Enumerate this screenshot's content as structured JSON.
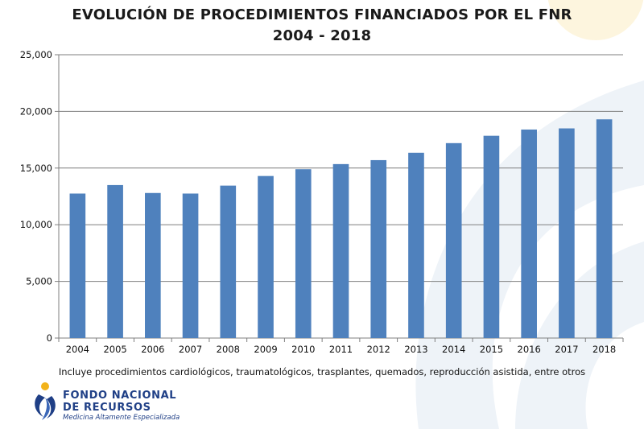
{
  "title_line1": "EVOLUCIÓN DE PROCEDIMIENTOS FINANCIADOS POR EL FNR",
  "title_line2": "2004 - 2018",
  "note": "Incluye procedimientos cardiológicos, traumatológicos, trasplantes, quemados, reproducción asistida, entre otros",
  "logo": {
    "line1": "FONDO NACIONAL",
    "line2": "DE RECURSOS",
    "tagline": "Medicina Altamente Especializada",
    "icon": "person-swirl-logo-icon"
  },
  "colors": {
    "bar": "#4f81bd",
    "grid": "#7f7f7f",
    "logo": "#1f3f86"
  },
  "chart_data": {
    "type": "bar",
    "categories": [
      "2004",
      "2005",
      "2006",
      "2007",
      "2008",
      "2009",
      "2010",
      "2011",
      "2012",
      "2013",
      "2014",
      "2015",
      "2016",
      "2017",
      "2018"
    ],
    "values": [
      12750,
      13500,
      12800,
      12750,
      13450,
      14300,
      14900,
      15350,
      15700,
      16350,
      17200,
      17850,
      18400,
      18500,
      19300
    ],
    "ylim": [
      0,
      25000
    ],
    "yticks": [
      0,
      5000,
      10000,
      15000,
      20000,
      25000
    ],
    "ytick_labels": [
      "0",
      "5,000",
      "10,000",
      "15,000",
      "20,000",
      "25,000"
    ],
    "grid": true,
    "xlabel": "",
    "ylabel": ""
  }
}
